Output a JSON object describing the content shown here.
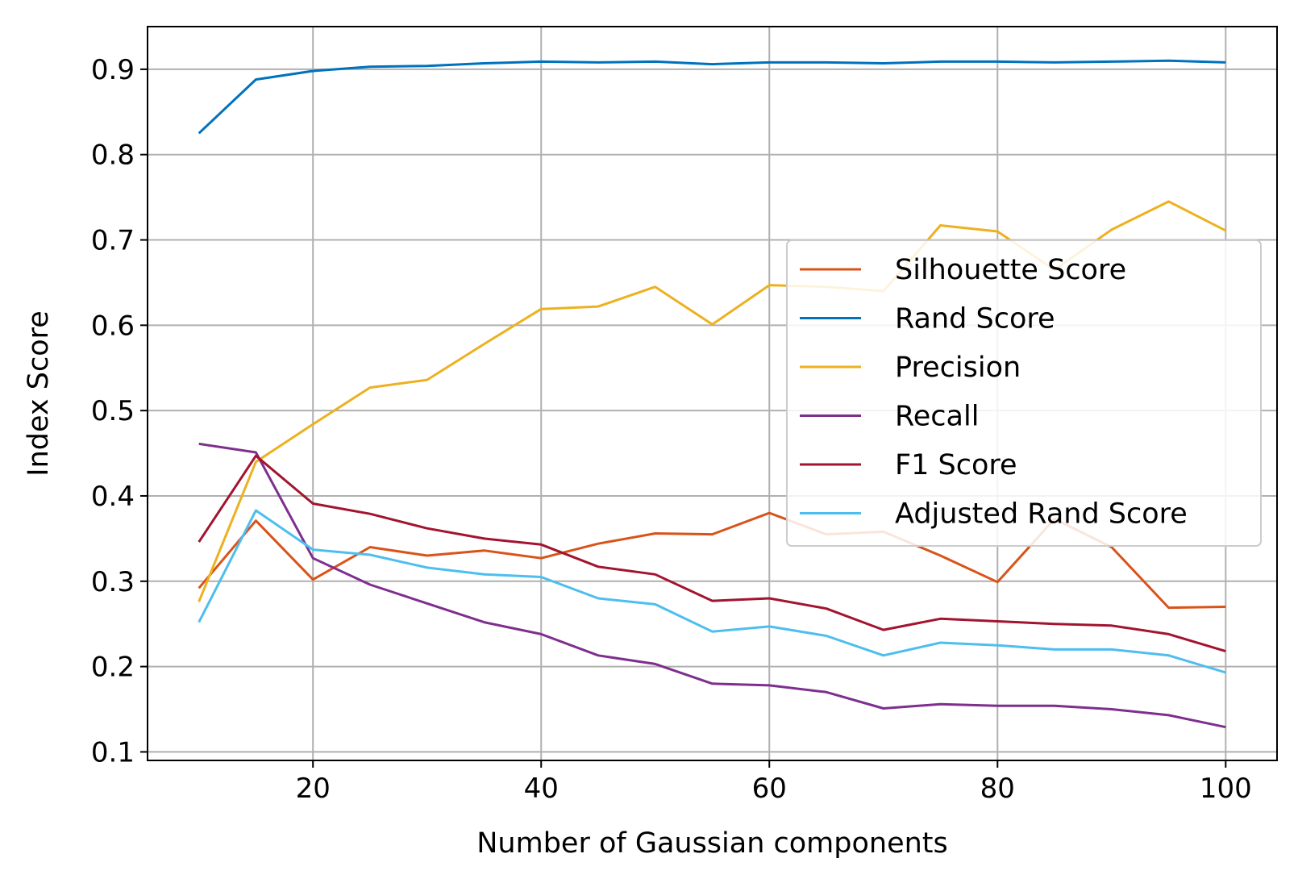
{
  "chart_data": {
    "type": "line",
    "title": "",
    "xlabel": "Number of Gaussian components",
    "ylabel": "Index Score",
    "xlim": [
      5.5,
      104.5
    ],
    "ylim": [
      0.09,
      0.95
    ],
    "xticks": [
      20,
      40,
      60,
      80,
      100
    ],
    "yticks": [
      0.1,
      0.2,
      0.3,
      0.4,
      0.5,
      0.6,
      0.7,
      0.8,
      0.9
    ],
    "grid": true,
    "legend_position": "center-right",
    "x": [
      10,
      15,
      20,
      25,
      30,
      35,
      40,
      45,
      50,
      55,
      60,
      65,
      70,
      75,
      80,
      85,
      90,
      95,
      100
    ],
    "series": [
      {
        "name": "Silhouette Score",
        "color": "#d95319",
        "values": [
          0.292,
          0.371,
          0.302,
          0.34,
          0.33,
          0.336,
          0.327,
          0.344,
          0.356,
          0.355,
          0.38,
          0.355,
          0.358,
          0.33,
          0.299,
          0.373,
          0.34,
          0.269,
          0.27
        ]
      },
      {
        "name": "Rand Score",
        "color": "#0072bd",
        "values": [
          0.825,
          0.888,
          0.898,
          0.903,
          0.904,
          0.907,
          0.909,
          0.908,
          0.909,
          0.906,
          0.908,
          0.908,
          0.907,
          0.909,
          0.909,
          0.908,
          0.909,
          0.91,
          0.908
        ]
      },
      {
        "name": "Precision",
        "color": "#edb120",
        "values": [
          0.276,
          0.44,
          0.484,
          0.527,
          0.536,
          0.578,
          0.619,
          0.622,
          0.645,
          0.601,
          0.647,
          0.645,
          0.64,
          0.717,
          0.71,
          0.665,
          0.712,
          0.745,
          0.711
        ]
      },
      {
        "name": "Recall",
        "color": "#7e2f8e",
        "values": [
          0.461,
          0.451,
          0.327,
          0.296,
          0.274,
          0.252,
          0.238,
          0.213,
          0.203,
          0.18,
          0.178,
          0.17,
          0.151,
          0.156,
          0.154,
          0.154,
          0.15,
          0.143,
          0.129
        ]
      },
      {
        "name": "F1 Score",
        "color": "#a2142f",
        "values": [
          0.346,
          0.447,
          0.391,
          0.379,
          0.362,
          0.35,
          0.343,
          0.317,
          0.308,
          0.277,
          0.28,
          0.268,
          0.243,
          0.256,
          0.253,
          0.25,
          0.248,
          0.238,
          0.218
        ]
      },
      {
        "name": "Adjusted Rand Score",
        "color": "#4dbeee",
        "values": [
          0.252,
          0.383,
          0.337,
          0.331,
          0.316,
          0.308,
          0.305,
          0.28,
          0.273,
          0.241,
          0.247,
          0.236,
          0.213,
          0.228,
          0.225,
          0.22,
          0.22,
          0.213,
          0.193
        ]
      }
    ]
  }
}
